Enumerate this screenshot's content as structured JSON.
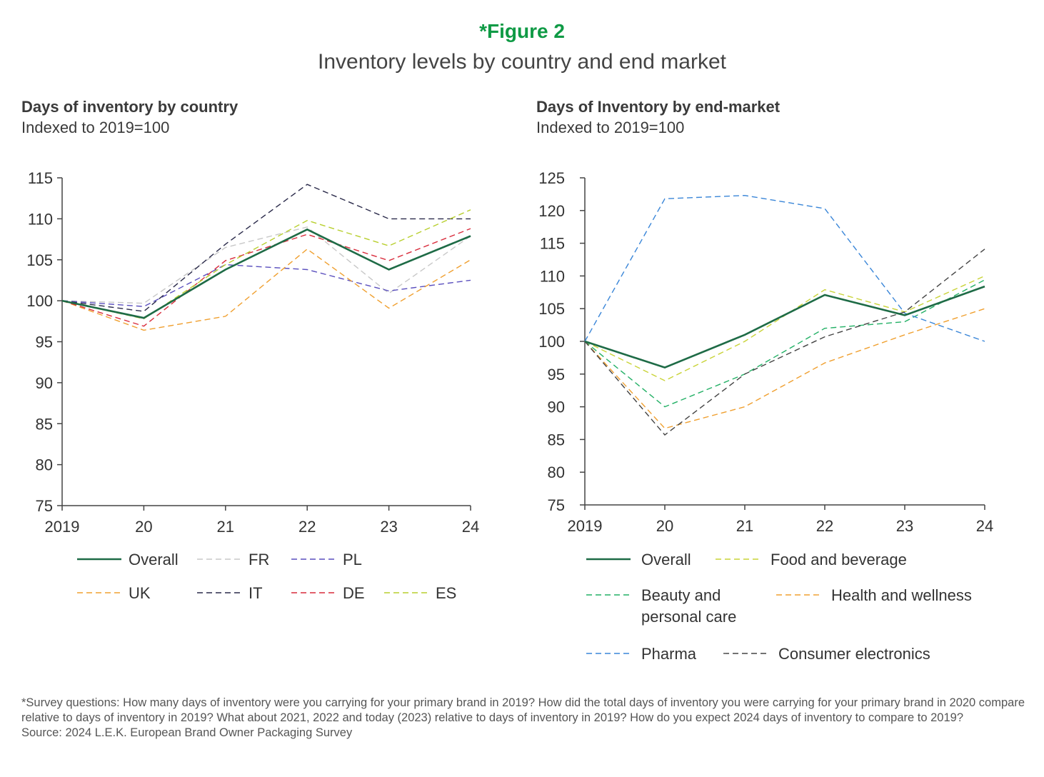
{
  "figure": {
    "label": "*Figure 2",
    "title": "Inventory levels by country and end market"
  },
  "left_panel": {
    "title": "Days of inventory by country",
    "subtitle": "Indexed to 2019=100"
  },
  "right_panel": {
    "title": "Days of Inventory by end-market",
    "subtitle": "Indexed to 2019=100"
  },
  "footnote": {
    "survey": "*Survey questions: How many days of inventory were you carrying for your primary brand in 2019? How did the total days of inventory you were carrying for your primary brand in 2020 compare relative to days of inventory in 2019? What about 2021, 2022 and today (2023) relative to days of inventory in 2019? How do you expect 2024 days of inventory to compare to 2019?",
    "source": "Source: 2024 L.E.K. European Brand Owner Packaging Survey"
  },
  "chart_data": [
    {
      "type": "line",
      "title": "Days of inventory by country",
      "subtitle": "Indexed to 2019=100",
      "xlabel": "",
      "ylabel": "",
      "x": [
        "2019",
        "20",
        "21",
        "22",
        "23",
        "24"
      ],
      "ylim": [
        75,
        115
      ],
      "yticks": [
        75,
        80,
        85,
        90,
        95,
        100,
        105,
        110,
        115
      ],
      "legend_position": "bottom",
      "series": [
        {
          "name": "Overall",
          "color": "#1e6b46",
          "style": "solid",
          "values": [
            100,
            97.9,
            103.8,
            108.7,
            103.8,
            107.9
          ]
        },
        {
          "name": "FR",
          "color": "#c8c8c8",
          "style": "dashed",
          "values": [
            100,
            99.7,
            106.5,
            109.0,
            100.9,
            107.9
          ]
        },
        {
          "name": "PL",
          "color": "#5a4fbe",
          "style": "dashed",
          "values": [
            100,
            99.3,
            104.4,
            103.8,
            101.2,
            102.5
          ]
        },
        {
          "name": "UK",
          "color": "#f0a030",
          "style": "dashed",
          "values": [
            100,
            96.4,
            98.1,
            106.3,
            99.1,
            105.0
          ]
        },
        {
          "name": "IT",
          "color": "#2a2a4a",
          "style": "dashed",
          "values": [
            100,
            98.7,
            106.9,
            114.2,
            110.0,
            110.0
          ]
        },
        {
          "name": "DE",
          "color": "#d92c3c",
          "style": "dashed",
          "values": [
            100,
            96.9,
            104.9,
            108.1,
            104.9,
            108.8
          ]
        },
        {
          "name": "ES",
          "color": "#b8cf2e",
          "style": "dashed",
          "values": [
            100,
            97.8,
            104.4,
            109.8,
            106.7,
            111.1
          ]
        }
      ]
    },
    {
      "type": "line",
      "title": "Days of Inventory by end-market",
      "subtitle": "Indexed to 2019=100",
      "xlabel": "",
      "ylabel": "",
      "x": [
        "2019",
        "20",
        "21",
        "22",
        "23",
        "24"
      ],
      "ylim": [
        75,
        125
      ],
      "yticks": [
        75,
        80,
        85,
        90,
        95,
        100,
        105,
        110,
        115,
        120,
        125
      ],
      "legend_position": "bottom",
      "series": [
        {
          "name": "Overall",
          "color": "#1e6b46",
          "style": "solid",
          "values": [
            100,
            96.0,
            101.0,
            107.1,
            104.0,
            108.4
          ]
        },
        {
          "name": "Food and beverage",
          "color": "#c9d337",
          "style": "dashed",
          "values": [
            100,
            94.0,
            100.0,
            107.9,
            104.5,
            110.0
          ]
        },
        {
          "name": "Beauty and personal care",
          "color": "#22b065",
          "style": "dashed",
          "values": [
            100,
            90.0,
            95.0,
            102.0,
            103.0,
            109.4
          ]
        },
        {
          "name": "Health and wellness",
          "color": "#f0a030",
          "style": "dashed",
          "values": [
            100,
            86.7,
            90.0,
            96.7,
            101.0,
            105.0
          ]
        },
        {
          "name": "Pharma",
          "color": "#3a86d8",
          "style": "dashed",
          "values": [
            100,
            121.8,
            122.3,
            120.3,
            104.3,
            100.0
          ]
        },
        {
          "name": "Consumer electronics",
          "color": "#444444",
          "style": "dashed",
          "values": [
            100,
            85.7,
            95.0,
            100.7,
            104.5,
            114.1
          ]
        }
      ]
    }
  ]
}
